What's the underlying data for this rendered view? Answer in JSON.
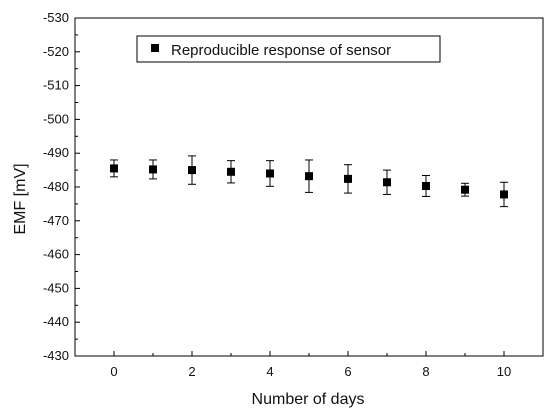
{
  "chart_data": {
    "type": "scatter",
    "title": "",
    "xlabel": "Number of days",
    "ylabel": "EMF [mV]",
    "xlim": [
      -1,
      11
    ],
    "ylim": [
      -430,
      -530
    ],
    "x_ticks": [
      0,
      2,
      4,
      6,
      8,
      10
    ],
    "y_ticks": [
      -430,
      -440,
      -450,
      -460,
      -470,
      -480,
      -490,
      -500,
      -510,
      -520,
      -530
    ],
    "grid": false,
    "legend_position": "top-center",
    "series": [
      {
        "name": "Reproducible response of sensor",
        "marker": "square",
        "color": "#000000",
        "x": [
          0,
          1,
          2,
          3,
          4,
          5,
          6,
          7,
          8,
          9,
          10
        ],
        "y": [
          -485.5,
          -485.2,
          -485.0,
          -484.5,
          -484.0,
          -483.2,
          -482.4,
          -481.4,
          -480.3,
          -479.2,
          -477.8
        ],
        "error": [
          2.5,
          2.8,
          4.2,
          3.3,
          3.8,
          4.8,
          4.2,
          3.6,
          3.1,
          1.9,
          3.6
        ]
      }
    ]
  }
}
